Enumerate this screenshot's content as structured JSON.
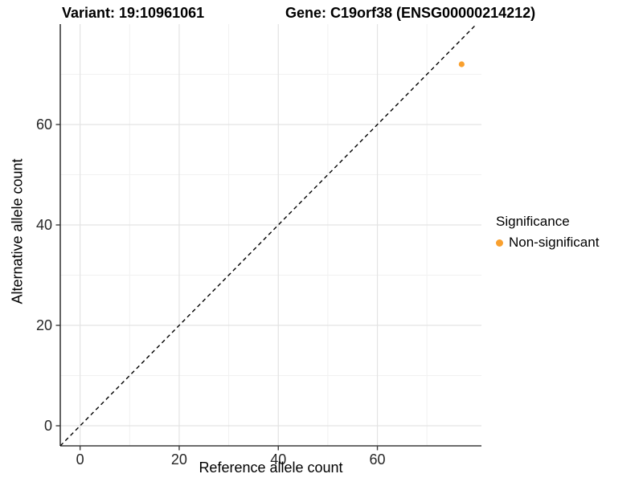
{
  "header": {
    "variant_title": "Variant: 19:10961061",
    "gene_title": "Gene: C19orf38 (ENSG00000214212)"
  },
  "chart_data": {
    "type": "scatter",
    "xlabel": "Reference allele count",
    "ylabel": "Alternative allele count",
    "xlim": [
      -4,
      81
    ],
    "ylim": [
      -4,
      80
    ],
    "x_ticks": [
      0,
      20,
      40,
      60
    ],
    "y_ticks": [
      0,
      20,
      40,
      60
    ],
    "x_minor_ticks": [
      10,
      30,
      50,
      70
    ],
    "y_minor_ticks": [
      10,
      30,
      50,
      70
    ],
    "grid": "major+minor",
    "identity_line": {
      "slope": 1,
      "intercept": 0,
      "style": "dashed",
      "color": "#000000"
    },
    "series": [
      {
        "name": "Non-significant",
        "color": "#F9A02E",
        "points": [
          {
            "x": 77,
            "y": 72
          }
        ]
      }
    ],
    "legend": {
      "title": "Significance",
      "position": "right",
      "items": [
        {
          "label": "Non-significant",
          "color": "#F9A02E"
        }
      ]
    }
  },
  "style": {
    "grid_major_color": "#e3e3e3",
    "grid_minor_color": "#f1f1f1",
    "axis_line_color": "#3c3c3c",
    "tick_label_color": "#262626",
    "point_radius": 3.6
  }
}
